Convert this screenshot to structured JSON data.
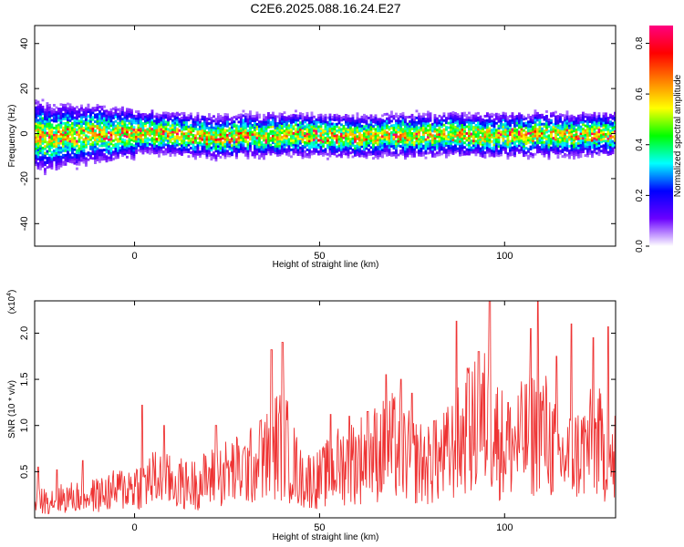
{
  "title": "C2E6.2025.088.16.24.E27",
  "chart_data": [
    {
      "type": "heatmap",
      "xlabel": "Height of straight line (km)",
      "ylabel": "Frequency (Hz)",
      "xlim": [
        -27,
        130
      ],
      "ylim": [
        -50,
        48
      ],
      "x_ticks": [
        0,
        50,
        100
      ],
      "y_ticks": [
        -40,
        -20,
        0,
        20,
        40
      ],
      "y_tick_labels": [
        "-40",
        "-20",
        "0",
        "20",
        "40"
      ],
      "description_of_data": "Energy band centred near 0 Hz, spread roughly -10 to +10 Hz, wider at low heights",
      "colorbar": {
        "label": "Normalized spectral amplitude",
        "range": [
          0,
          0.87
        ],
        "ticks": [
          0.0,
          0.2,
          0.4,
          0.6,
          0.8
        ],
        "tick_labels": [
          "0.0",
          "0.2",
          "0.4",
          "0.6",
          "0.8"
        ],
        "colormap": [
          "#ffffff",
          "#6a00ff",
          "#0000ff",
          "#00ffff",
          "#00ff00",
          "#ffff00",
          "#ff8000",
          "#ff0000",
          "#ff0080"
        ]
      },
      "band_center_hz": [
        [
          -25,
          -2
        ],
        [
          -15,
          0
        ],
        [
          0,
          1
        ],
        [
          10,
          1
        ],
        [
          20,
          -1
        ],
        [
          30,
          0
        ],
        [
          40,
          0
        ],
        [
          50,
          0
        ],
        [
          60,
          -1
        ],
        [
          70,
          0
        ],
        [
          80,
          0
        ],
        [
          90,
          0
        ],
        [
          100,
          0
        ],
        [
          110,
          0
        ],
        [
          120,
          0
        ],
        [
          130,
          0
        ]
      ]
    },
    {
      "type": "line",
      "xlabel": "Height of straight line (km)",
      "ylabel": "SNR (10 * v/v)",
      "y_multiplier": "(x10",
      "y_multiplier_exp": "4",
      "y_multiplier_close": ")",
      "xlim": [
        -27,
        130
      ],
      "ylim": [
        0,
        2.35
      ],
      "x_ticks": [
        0,
        50,
        100
      ],
      "y_ticks": [
        0.5,
        1.0,
        1.5,
        2.0
      ],
      "y_tick_labels": [
        "0.5",
        "1.0",
        "1.5",
        "2.0"
      ],
      "line_color": "#ee3333",
      "series": [
        {
          "values_envelope": [
            [
              -27,
              0.25
            ],
            [
              -20,
              0.3
            ],
            [
              -10,
              0.35
            ],
            [
              0,
              0.5
            ],
            [
              5,
              0.6
            ],
            [
              10,
              0.55
            ],
            [
              15,
              0.5
            ],
            [
              20,
              0.6
            ],
            [
              25,
              0.7
            ],
            [
              30,
              0.75
            ],
            [
              35,
              0.9
            ],
            [
              38,
              1.1
            ],
            [
              40,
              1.2
            ],
            [
              45,
              0.6
            ],
            [
              50,
              0.6
            ],
            [
              55,
              0.8
            ],
            [
              60,
              0.9
            ],
            [
              65,
              1.0
            ],
            [
              70,
              1.1
            ],
            [
              75,
              0.9
            ],
            [
              80,
              0.8
            ],
            [
              85,
              1.0
            ],
            [
              90,
              1.3
            ],
            [
              95,
              1.5
            ],
            [
              100,
              1.1
            ],
            [
              105,
              1.2
            ],
            [
              110,
              1.4
            ],
            [
              115,
              0.9
            ],
            [
              120,
              1.0
            ],
            [
              125,
              1.2
            ],
            [
              130,
              0.7
            ]
          ],
          "peaks": [
            [
              -26,
              0.55
            ],
            [
              -21,
              0.52
            ],
            [
              -14,
              0.62
            ],
            [
              2,
              1.22
            ],
            [
              8,
              1.0
            ],
            [
              22,
              1.0
            ],
            [
              34,
              1.05
            ],
            [
              37,
              1.82
            ],
            [
              40,
              1.9
            ],
            [
              53,
              1.12
            ],
            [
              58,
              1.1
            ],
            [
              63,
              1.15
            ],
            [
              68,
              1.55
            ],
            [
              72,
              1.5
            ],
            [
              75,
              1.35
            ],
            [
              81,
              1.05
            ],
            [
              87,
              2.13
            ],
            [
              90,
              1.62
            ],
            [
              93,
              1.8
            ],
            [
              96,
              2.35
            ],
            [
              101,
              1.25
            ],
            [
              107,
              2.05
            ],
            [
              109,
              2.35
            ],
            [
              114,
              1.75
            ],
            [
              118,
              2.1
            ],
            [
              124,
              1.95
            ],
            [
              128,
              2.07
            ],
            [
              130,
              1.1
            ]
          ]
        }
      ]
    }
  ]
}
